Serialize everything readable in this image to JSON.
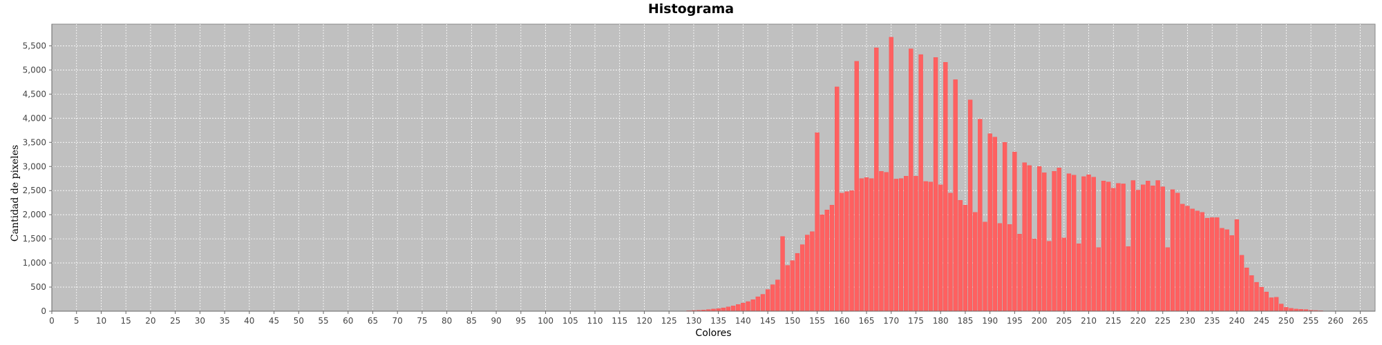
{
  "colors": {
    "background": "#c0c0c0",
    "bar": "#ff6060",
    "bar_edge": "#ff4040",
    "grid": "#ffffff"
  },
  "chart_data": {
    "type": "bar",
    "title": "Histograma",
    "xlabel": "Colores",
    "ylabel": "Cantidad de pixeles",
    "xlim": [
      0,
      268
    ],
    "ylim": [
      0,
      5950
    ],
    "grid": true,
    "x_ticks": [
      0,
      5,
      10,
      15,
      20,
      25,
      30,
      35,
      40,
      45,
      50,
      55,
      60,
      65,
      70,
      75,
      80,
      85,
      90,
      95,
      100,
      105,
      110,
      115,
      120,
      125,
      130,
      135,
      140,
      145,
      150,
      155,
      160,
      165,
      170,
      175,
      180,
      185,
      190,
      195,
      200,
      205,
      210,
      215,
      220,
      225,
      230,
      235,
      240,
      245,
      250,
      255,
      260,
      265
    ],
    "y_ticks": [
      0,
      500,
      1000,
      1500,
      2000,
      2500,
      3000,
      3500,
      4000,
      4500,
      5000,
      5500
    ],
    "y_tick_labels": [
      "0",
      "500",
      "1,000",
      "1,500",
      "2,000",
      "2,500",
      "3,000",
      "3,500",
      "4,000",
      "4,500",
      "5,000",
      "5,500"
    ],
    "x_start": 0,
    "values": [
      0,
      0,
      0,
      0,
      0,
      0,
      0,
      0,
      0,
      0,
      0,
      0,
      0,
      0,
      0,
      0,
      0,
      0,
      0,
      0,
      0,
      0,
      0,
      0,
      0,
      0,
      0,
      0,
      0,
      0,
      0,
      0,
      0,
      0,
      0,
      0,
      0,
      0,
      0,
      0,
      0,
      0,
      0,
      0,
      0,
      0,
      0,
      0,
      0,
      0,
      0,
      0,
      0,
      0,
      0,
      0,
      0,
      0,
      0,
      0,
      0,
      0,
      0,
      0,
      0,
      0,
      0,
      0,
      0,
      0,
      0,
      0,
      0,
      0,
      0,
      0,
      0,
      0,
      0,
      0,
      0,
      0,
      0,
      0,
      0,
      0,
      0,
      0,
      0,
      0,
      0,
      0,
      0,
      0,
      0,
      0,
      0,
      0,
      0,
      0,
      0,
      0,
      0,
      0,
      0,
      0,
      0,
      0,
      0,
      0,
      0,
      0,
      0,
      0,
      0,
      0,
      0,
      0,
      0,
      0,
      0,
      0,
      0,
      0,
      0,
      0,
      0,
      0,
      5,
      10,
      15,
      20,
      25,
      35,
      45,
      55,
      70,
      90,
      110,
      140,
      170,
      200,
      240,
      300,
      350,
      450,
      550,
      650,
      1550,
      950,
      1050,
      1200,
      1380,
      1580,
      1650,
      3700,
      2000,
      2100,
      2200,
      4650,
      2450,
      2480,
      2500,
      5180,
      2750,
      2770,
      2750,
      5460,
      2900,
      2880,
      5680,
      2740,
      2750,
      2800,
      5440,
      2800,
      5320,
      2690,
      2680,
      5260,
      2620,
      5160,
      2450,
      4800,
      2300,
      2200,
      4380,
      2050,
      3980,
      1850,
      3680,
      3610,
      1820,
      3500,
      1800,
      3300,
      1600,
      3080,
      3020,
      1500,
      3000,
      2870,
      1450,
      2900,
      2970,
      1520,
      2850,
      2820,
      1400,
      2790,
      2830,
      2780,
      1320,
      2700,
      2680,
      2550,
      2650,
      2640,
      1340,
      2710,
      2510,
      2620,
      2700,
      2600,
      2710,
      2580,
      1320,
      2520,
      2450,
      2220,
      2180,
      2120,
      2080,
      2050,
      1930,
      1940,
      1940,
      1720,
      1690,
      1570,
      1900,
      1160,
      900,
      740,
      600,
      500,
      400,
      280,
      290,
      150,
      80,
      60,
      45,
      40,
      35,
      20,
      15,
      10,
      5,
      3,
      2,
      1,
      0,
      0,
      0,
      0,
      0,
      0,
      0,
      0,
      0,
      0,
      0,
      0,
      0,
      0
    ]
  }
}
